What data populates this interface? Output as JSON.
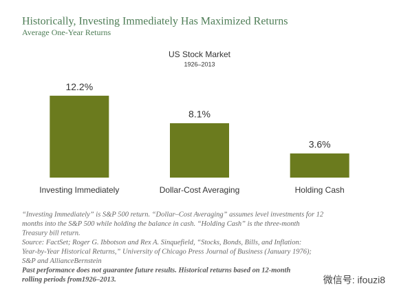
{
  "chart_data": {
    "type": "bar",
    "title": "Historically, Investing Immediately Has Maximized Returns",
    "subtitle": "Average One-Year Returns",
    "chart_title": "US Stock Market",
    "chart_subtitle": "1926–2013",
    "categories": [
      "Investing Immediately",
      "Dollar-Cost Averaging",
      "Holding Cash"
    ],
    "values": [
      12.2,
      8.1,
      3.6
    ],
    "value_labels": [
      "12.2%",
      "8.1%",
      "3.6%"
    ],
    "color": "#6b7b1e"
  },
  "footnotes": [
    "“Investing Immediately” is S&P 500 return. “Dollar–Cost Averaging” assumes level investments for 12",
    "months into the S&P 500 while holding the balance in cash. “Holding Cash” is the three-month",
    "Treasury bill return.",
    "Source: FactSet; Roger G. Ibbotson and Rex A. Sinquefield, “Stocks, Bonds, Bills, and Inflation:",
    "Year-by-Year Historical Returns,” University of Chicago Press Journal of Business (January 1976);",
    "S&P and AllianceBernstein"
  ],
  "disclaimer": [
    "Past performance does not guarantee future results. Historical returns based on 12-month",
    "rolling periods from1926–2013."
  ],
  "watermark": "微信号: ifouzi8"
}
